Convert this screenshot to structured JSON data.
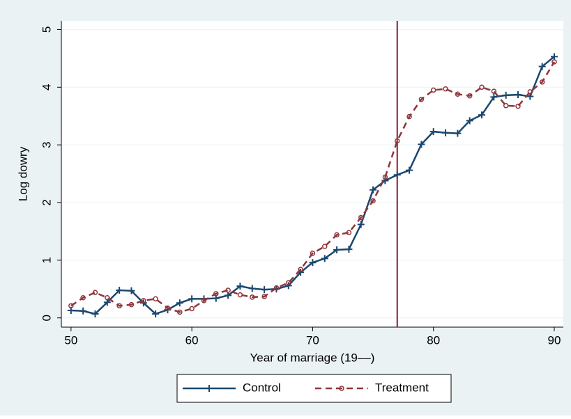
{
  "chart_data": {
    "type": "line",
    "x_label": "Year of marriage (19––)",
    "y_label": "Log dowry",
    "x": [
      50,
      51,
      52,
      53,
      54,
      55,
      56,
      57,
      58,
      59,
      60,
      61,
      62,
      63,
      64,
      65,
      66,
      67,
      68,
      69,
      70,
      71,
      72,
      73,
      74,
      75,
      76,
      77,
      78,
      79,
      80,
      81,
      82,
      83,
      84,
      85,
      86,
      87,
      88,
      89,
      90
    ],
    "series": [
      {
        "name": "Control",
        "color": "#1a476f",
        "marker": "plus",
        "dash": false,
        "values": [
          0.13,
          0.12,
          0.07,
          0.27,
          0.48,
          0.47,
          0.26,
          0.07,
          0.14,
          0.26,
          0.33,
          0.33,
          0.34,
          0.39,
          0.55,
          0.51,
          0.49,
          0.5,
          0.56,
          0.79,
          0.96,
          1.03,
          1.18,
          1.19,
          1.62,
          2.22,
          2.38,
          2.48,
          2.56,
          3.01,
          3.23,
          3.21,
          3.2,
          3.42,
          3.52,
          3.83,
          3.86,
          3.87,
          3.84,
          4.36,
          4.53
        ]
      },
      {
        "name": "Treatment",
        "color": "#90353b",
        "marker": "circle",
        "dash": true,
        "values": [
          0.21,
          0.35,
          0.44,
          0.35,
          0.21,
          0.23,
          0.3,
          0.33,
          0.17,
          0.1,
          0.16,
          0.3,
          0.42,
          0.48,
          0.4,
          0.36,
          0.37,
          0.52,
          0.61,
          0.84,
          1.12,
          1.24,
          1.44,
          1.48,
          1.74,
          2.03,
          2.44,
          3.07,
          3.49,
          3.79,
          3.95,
          3.97,
          3.88,
          3.85,
          4.0,
          3.93,
          3.68,
          3.67,
          3.92,
          4.09,
          4.44
        ]
      }
    ],
    "reference_line": {
      "x": 77,
      "color": "#8b1a3a"
    },
    "xlim": [
      49.2,
      90.75
    ],
    "ylim": [
      -0.16,
      5.15
    ],
    "xticks": [
      50,
      60,
      70,
      80,
      90
    ],
    "yticks": [
      0,
      1,
      2,
      3,
      4,
      5
    ],
    "grid": true,
    "legend": "bottom"
  }
}
